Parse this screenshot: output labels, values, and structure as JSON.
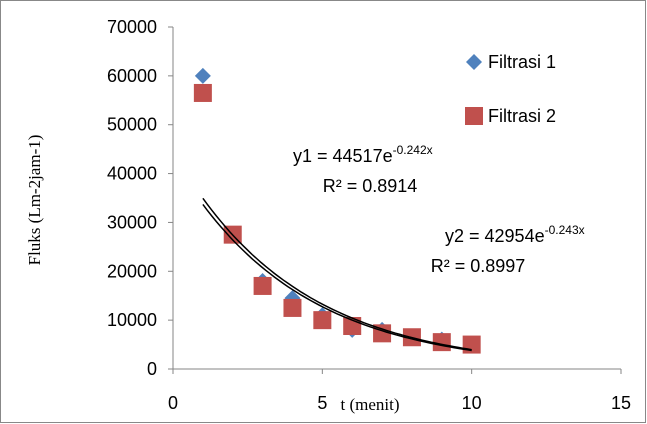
{
  "chart_data": {
    "type": "scatter",
    "x_label": "t (menit)",
    "y_label": "Fluks (Lm-2jam-1)",
    "xlim": [
      0,
      15
    ],
    "xticks": [
      0,
      5,
      10,
      15
    ],
    "ylim": [
      0,
      70000
    ],
    "yticks": [
      0,
      10000,
      20000,
      30000,
      40000,
      50000,
      60000,
      70000
    ],
    "grid": false,
    "legend": "right",
    "series": [
      {
        "name": "Filtrasi 1",
        "color": "#4f81bd",
        "marker": "diamond",
        "x": [
          1,
          2,
          3,
          4,
          5,
          6,
          7,
          8,
          9,
          10
        ],
        "values": [
          60000,
          27500,
          18000,
          14500,
          11000,
          8000,
          8000,
          6500,
          6000,
          5000
        ]
      },
      {
        "name": "Filtrasi 2",
        "color": "#c0504d",
        "marker": "square",
        "x": [
          1,
          2,
          3,
          4,
          5,
          6,
          7,
          8,
          9,
          10
        ],
        "values": [
          56500,
          27500,
          17000,
          12500,
          10000,
          8800,
          7300,
          6500,
          5500,
          5000
        ]
      }
    ],
    "trendlines": [
      {
        "a": 44517,
        "b": -0.242,
        "equation": "y1 = 44517e",
        "exponent": "-0.242x",
        "r2": "R² = 0.8914"
      },
      {
        "a": 42954,
        "b": -0.243,
        "equation": "y2 = 42954e",
        "exponent": "-0.243x",
        "r2": "R² = 0.8997"
      }
    ]
  }
}
